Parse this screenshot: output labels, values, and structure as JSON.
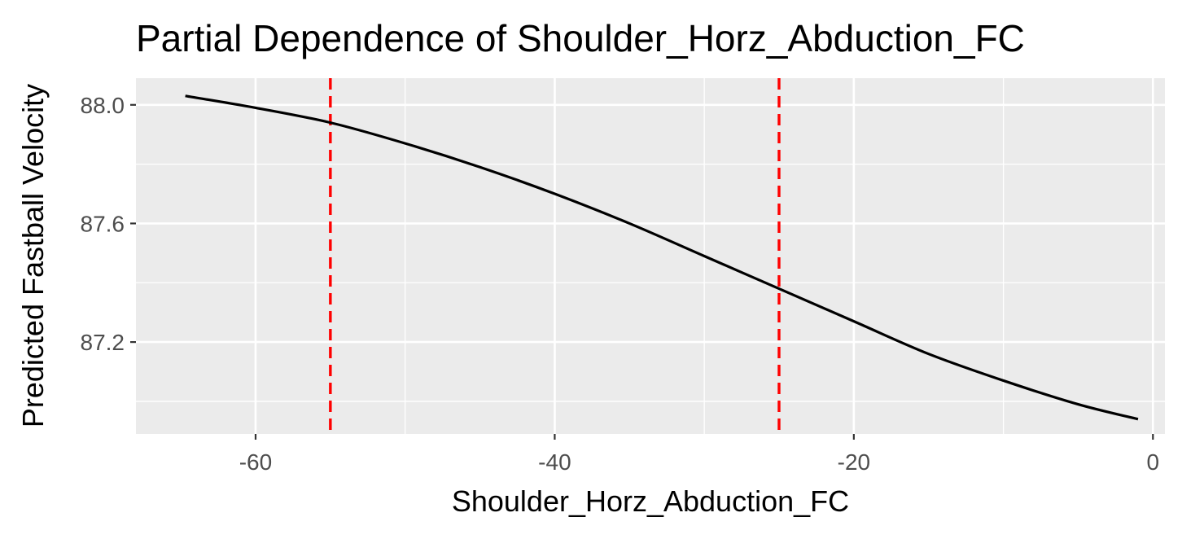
{
  "chart_data": {
    "type": "line",
    "title": "Partial Dependence of Shoulder_Horz_Abduction_FC",
    "xlabel": "Shoulder_Horz_Abduction_FC",
    "ylabel": "Predicted Fastball Velocity",
    "xlim": [
      -68,
      0.8
    ],
    "ylim": [
      86.89,
      88.09
    ],
    "x_ticks": [
      -60,
      -40,
      -20,
      0
    ],
    "x_tick_labels": [
      "-60",
      "-40",
      "-20",
      "0"
    ],
    "x_minor_ticks": [
      -50,
      -30,
      -10
    ],
    "y_ticks": [
      87.2,
      87.6,
      88.0
    ],
    "y_tick_labels": [
      "87.2",
      "87.6",
      "88.0"
    ],
    "y_minor_ticks": [
      87.0,
      87.4,
      87.8
    ],
    "grid": true,
    "series": [
      {
        "color": "#000000",
        "x": [
          -64.7,
          -60,
          -55,
          -50,
          -45,
          -40,
          -35,
          -30,
          -25,
          -20,
          -15,
          -10,
          -5,
          -1
        ],
        "y": [
          88.03,
          87.99,
          87.94,
          87.87,
          87.79,
          87.7,
          87.6,
          87.49,
          87.38,
          87.27,
          87.16,
          87.07,
          86.99,
          86.94
        ]
      }
    ],
    "vlines": [
      {
        "x": -55,
        "color": "#ff0000",
        "style": "dashed"
      },
      {
        "x": -25,
        "color": "#ff0000",
        "style": "dashed"
      }
    ],
    "colors": {
      "panel_background": "#ebebeb",
      "grid_major": "#ffffff",
      "grid_minor": "#ffffff",
      "tick_text": "#4d4d4d",
      "tick_mark": "#333333"
    }
  }
}
